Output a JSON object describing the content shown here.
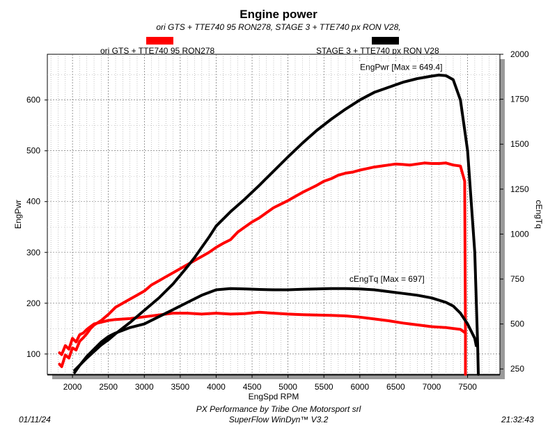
{
  "title": "Engine power",
  "subtitle": "ori GTS + TTE740 95 RON278, STAGE 3  + TTE740 px  RON V28,",
  "legend": [
    {
      "label": "ori GTS + TTE740 95 RON278",
      "color": "#ff0000"
    },
    {
      "label": "STAGE 3  + TTE740 px  RON V28",
      "color": "#000000"
    }
  ],
  "footer": {
    "date": "01/11/24",
    "line1": "PX Performance by Tribe One Motorsport srl",
    "line2": "SuperFlow WinDyn™ V3.2",
    "time": "21:32:43"
  },
  "chart_data": {
    "type": "line",
    "xlabel": "EngSpd RPM",
    "ylabel": "EngPwr",
    "y2label": "cEngTq",
    "xlim": [
      1650,
      7950
    ],
    "ylim": [
      60,
      690
    ],
    "y2lim": [
      220,
      2000
    ],
    "xticks": [
      2000,
      2500,
      3000,
      3500,
      4000,
      4500,
      5000,
      5500,
      6000,
      6500,
      7000,
      7500
    ],
    "yticks": [
      100,
      200,
      300,
      400,
      500,
      600
    ],
    "y2ticks": [
      250,
      500,
      750,
      1000,
      1250,
      1500,
      1750,
      2000
    ],
    "grid": true,
    "annotations": [
      {
        "text": "EngPwr [Max = 649.4]",
        "x": 7150,
        "y": 659
      },
      {
        "text": "cEngTq [Max = 697]",
        "x": 6900,
        "axis": "y2",
        "y": 735
      }
    ],
    "series": [
      {
        "name": "ori GTS + TTE740 95 RON278",
        "quantity": "EngPwr",
        "axis": "y",
        "color": "#ff0000",
        "x": [
          1820,
          1850,
          1900,
          1950,
          2000,
          2050,
          2100,
          2150,
          2200,
          2250,
          2300,
          2400,
          2500,
          2600,
          2700,
          2800,
          2900,
          3000,
          3100,
          3200,
          3300,
          3400,
          3500,
          3600,
          3700,
          3800,
          3900,
          4000,
          4100,
          4200,
          4300,
          4400,
          4500,
          4600,
          4700,
          4800,
          4900,
          5000,
          5100,
          5200,
          5300,
          5400,
          5500,
          5600,
          5700,
          5800,
          5900,
          6000,
          6100,
          6200,
          6300,
          6400,
          6500,
          6600,
          6700,
          6800,
          6900,
          7000,
          7100,
          7200,
          7300,
          7400,
          7460,
          7470,
          7470
        ],
        "y": [
          80,
          75,
          98,
          92,
          112,
          108,
          125,
          132,
          140,
          150,
          157,
          166,
          178,
          192,
          200,
          208,
          216,
          224,
          236,
          244,
          252,
          260,
          268,
          276,
          284,
          292,
          300,
          310,
          318,
          325,
          340,
          350,
          360,
          368,
          378,
          388,
          395,
          402,
          410,
          418,
          425,
          432,
          440,
          445,
          452,
          456,
          458,
          462,
          465,
          468,
          470,
          472,
          474,
          473,
          472,
          474,
          476,
          475,
          475,
          476,
          472,
          470,
          440,
          150,
          60
        ]
      },
      {
        "name": "ori GTS + TTE740 95 RON278",
        "quantity": "cEngTq",
        "axis": "y2",
        "color": "#ff0000",
        "x": [
          1820,
          1850,
          1900,
          1950,
          2000,
          2050,
          2100,
          2150,
          2200,
          2300,
          2400,
          2500,
          2600,
          2800,
          3000,
          3200,
          3400,
          3600,
          3800,
          4000,
          4200,
          4400,
          4600,
          4800,
          5000,
          5200,
          5400,
          5600,
          5800,
          6000,
          6200,
          6400,
          6600,
          6800,
          7000,
          7200,
          7400,
          7470
        ],
        "y": [
          340,
          330,
          380,
          360,
          420,
          400,
          440,
          450,
          470,
          500,
          510,
          520,
          525,
          530,
          540,
          550,
          560,
          560,
          555,
          560,
          555,
          558,
          565,
          560,
          555,
          552,
          550,
          548,
          545,
          538,
          528,
          518,
          505,
          495,
          485,
          480,
          470,
          450
        ]
      },
      {
        "name": "STAGE 3  + TTE740 px  RON V28",
        "quantity": "EngPwr",
        "axis": "y",
        "color": "#000000",
        "x": [
          2030,
          2100,
          2200,
          2300,
          2400,
          2500,
          2600,
          2800,
          3000,
          3200,
          3400,
          3500,
          3600,
          3700,
          3800,
          3900,
          4000,
          4200,
          4400,
          4600,
          4800,
          5000,
          5200,
          5400,
          5600,
          5800,
          6000,
          6200,
          6400,
          6600,
          6800,
          7000,
          7100,
          7200,
          7300,
          7400,
          7500,
          7600,
          7640,
          7650
        ],
        "y": [
          68,
          78,
          92,
          105,
          118,
          128,
          140,
          162,
          186,
          210,
          238,
          255,
          272,
          290,
          310,
          330,
          352,
          380,
          405,
          432,
          460,
          488,
          515,
          540,
          562,
          582,
          600,
          615,
          625,
          635,
          642,
          647,
          649,
          648,
          640,
          600,
          500,
          300,
          120,
          60
        ]
      },
      {
        "name": "STAGE 3  + TTE740 px  RON V28",
        "quantity": "cEngTq",
        "axis": "y2",
        "color": "#000000",
        "x": [
          2030,
          2100,
          2200,
          2300,
          2400,
          2500,
          2600,
          2800,
          3000,
          3200,
          3400,
          3600,
          3800,
          4000,
          4200,
          4400,
          4600,
          4800,
          5000,
          5200,
          5400,
          5600,
          5800,
          6000,
          6200,
          6400,
          6600,
          6800,
          7000,
          7200,
          7300,
          7400,
          7500,
          7600,
          7620,
          7630
        ],
        "y": [
          230,
          270,
          320,
          360,
          400,
          430,
          450,
          480,
          500,
          540,
          580,
          620,
          660,
          690,
          697,
          695,
          692,
          690,
          690,
          693,
          695,
          697,
          697,
          695,
          690,
          680,
          670,
          660,
          645,
          620,
          600,
          560,
          500,
          420,
          380,
          400
        ]
      }
    ]
  }
}
